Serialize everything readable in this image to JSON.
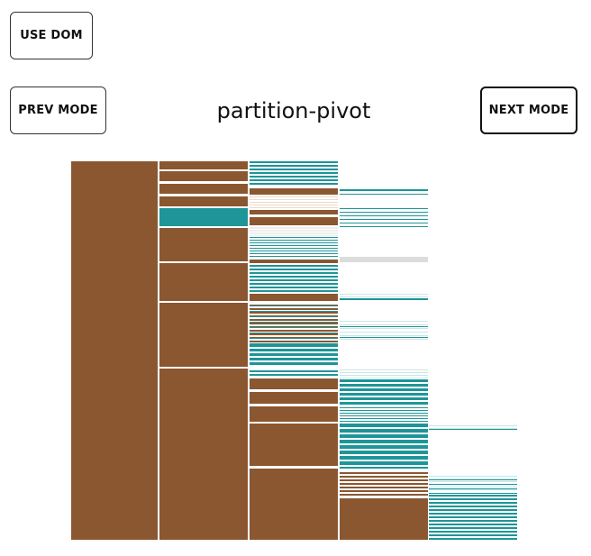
{
  "controls": {
    "use_dom_label": "USE DOM",
    "prev_mode_label": "PREV MODE",
    "next_mode_label": "NEXT MODE"
  },
  "mode": {
    "title": "partition-pivot"
  },
  "colors": {
    "brown": "#8a5731",
    "teal": "#1e9598",
    "gap": "#ffffff",
    "faint": "#dcdcdc",
    "pale_teal": "#c9e6e7",
    "pale_brown": "#ead9cb"
  }
}
